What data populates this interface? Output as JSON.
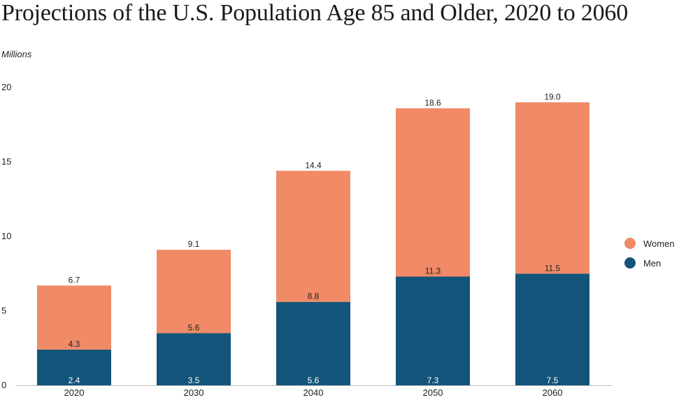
{
  "chart_data": {
    "type": "bar",
    "stacked": true,
    "title": "Projections of the U.S. Population Age 85 and Older, 2020 to 2060",
    "ylabel": "Millions",
    "xlabel": "",
    "ylim": [
      0,
      20
    ],
    "yticks": [
      "0",
      "5",
      "10",
      "15",
      "20"
    ],
    "categories": [
      "2020",
      "2030",
      "2040",
      "2050",
      "2060"
    ],
    "series": [
      {
        "name": "Men",
        "color": "#13557a",
        "values": [
          2.4,
          3.5,
          5.6,
          7.3,
          7.5
        ],
        "labels": [
          "2.4",
          "3.5",
          "5.6",
          "7.3",
          "7.5"
        ]
      },
      {
        "name": "Women",
        "color": "#f08a67",
        "values": [
          4.3,
          5.6,
          8.8,
          11.3,
          11.5
        ],
        "labels": [
          "4.3",
          "5.6",
          "8.8",
          "11.3",
          "11.5"
        ]
      }
    ],
    "totals": [
      "6.7",
      "9.1",
      "14.4",
      "18.6",
      "19.0"
    ],
    "legend": [
      {
        "name": "Women",
        "color": "#f08a67"
      },
      {
        "name": "Men",
        "color": "#13557a"
      }
    ],
    "grid": false,
    "legend_position": "right"
  }
}
